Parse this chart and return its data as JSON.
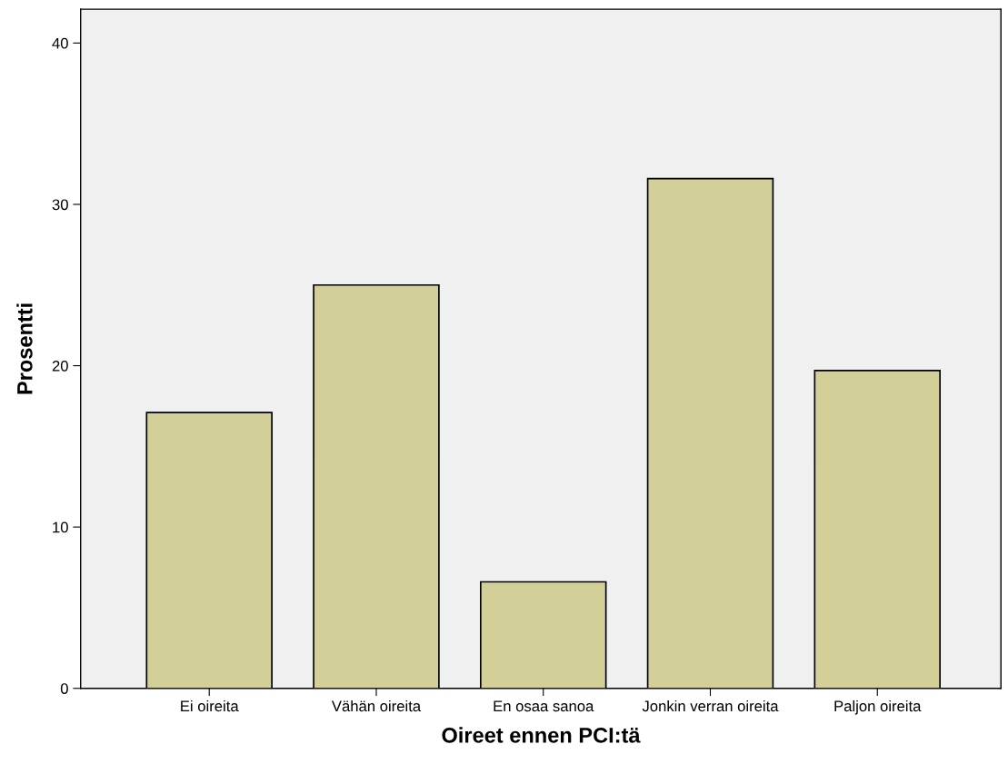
{
  "chart_data": {
    "type": "bar",
    "xlabel": "Oireet ennen PCI:tä",
    "ylabel": "Prosentti",
    "categories": [
      "Ei oireita",
      "Vähän oireita",
      "En osaa sanoa",
      "Jonkin verran oireita",
      "Paljon oireita"
    ],
    "values": [
      17.1,
      25.0,
      6.6,
      31.6,
      19.7
    ],
    "color": "#d3cf98",
    "ylim": [
      0,
      42.1
    ],
    "yticks": [
      0,
      10,
      20,
      30,
      40
    ],
    "grid": false
  }
}
